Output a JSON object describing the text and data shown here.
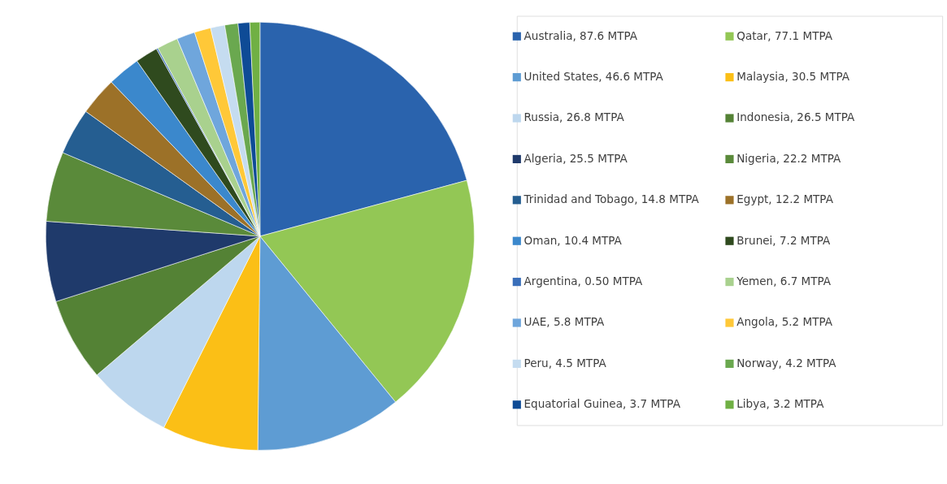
{
  "chart_data": {
    "type": "pie",
    "legend": "right",
    "categories": [
      "Australia, 87.6 MTPA",
      "Qatar, 77.1 MTPA",
      "United States, 46.6 MTPA",
      "Malaysia, 30.5 MTPA",
      "Russia, 26.8 MTPA",
      "Indonesia, 26.5 MTPA",
      "Algeria, 25.5 MTPA",
      "Nigeria, 22.2 MTPA",
      "Trinidad and Tobago, 14.8 MTPA",
      "Egypt, 12.2 MTPA",
      "Oman, 10.4 MTPA",
      "Brunei, 7.2 MTPA",
      "Argentina, 0.50 MTPA",
      "Yemen, 6.7 MTPA",
      "UAE, 5.8 MTPA",
      "Angola, 5.2 MTPA",
      "Peru, 4.5 MTPA",
      "Norway, 4.2 MTPA",
      "Equatorial Guinea, 3.7 MTPA",
      "Libya, 3.2 MTPA"
    ],
    "values": [
      87.6,
      77.1,
      46.6,
      30.5,
      26.8,
      26.5,
      25.5,
      22.2,
      14.8,
      12.2,
      10.4,
      7.2,
      0.5,
      6.7,
      5.8,
      5.2,
      4.5,
      4.2,
      3.7,
      3.2
    ],
    "colors": [
      "#2a63ad",
      "#93c755",
      "#5e9cd3",
      "#fbbf16",
      "#bdd7ee",
      "#548235",
      "#1f3a6b",
      "#5a8a3a",
      "#255e91",
      "#9c7128",
      "#3b88cc",
      "#2f4a1e",
      "#3a6fba",
      "#a9d18e",
      "#6fa6dc",
      "#ffc838",
      "#c5dcf0",
      "#6aa84f",
      "#0e4b96",
      "#70b044"
    ]
  }
}
